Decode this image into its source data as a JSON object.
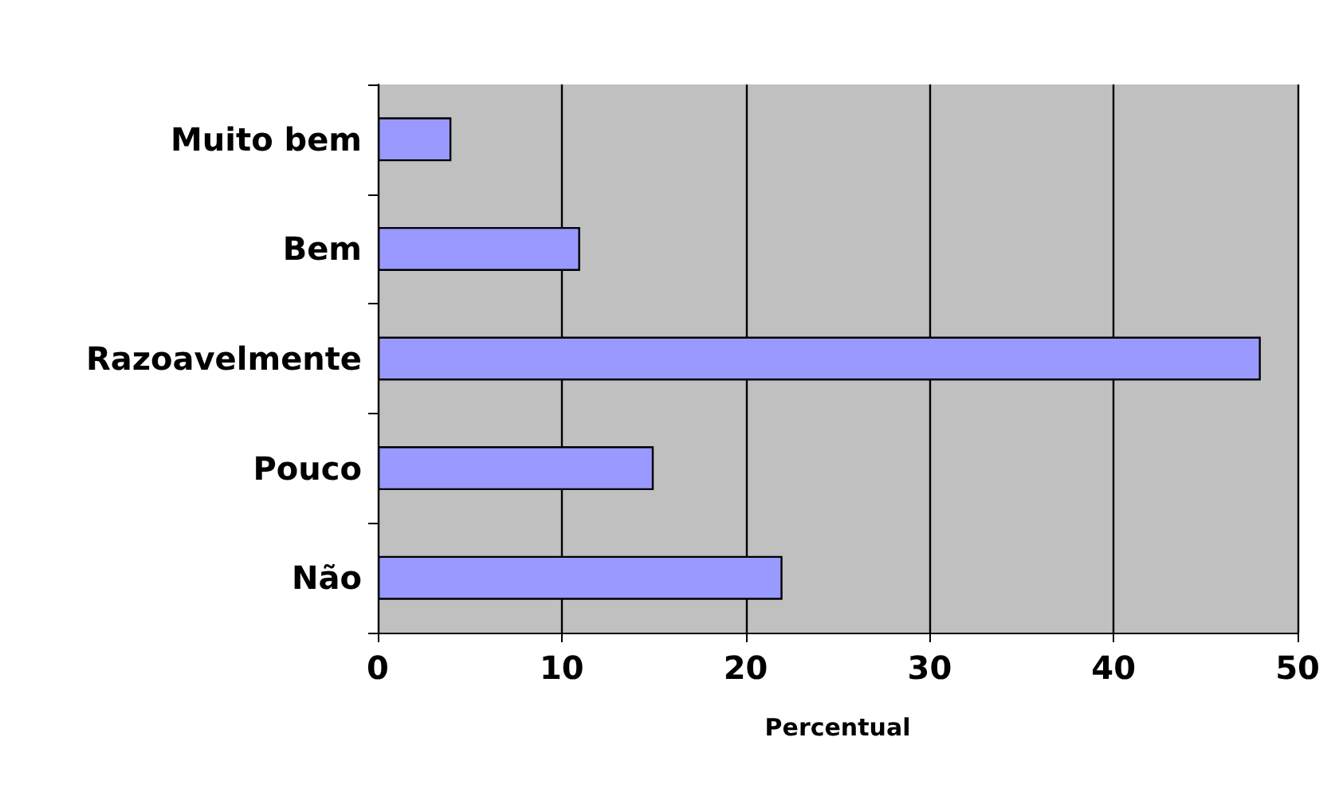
{
  "chart_data": {
    "type": "bar",
    "orientation": "horizontal",
    "xlabel": "Percentual",
    "categories": [
      "Muito bem",
      "Bem",
      "Razoavelmente",
      "Pouco",
      "Não"
    ],
    "series": [
      {
        "color": "#9999ff",
        "values": [
          4,
          11,
          48,
          15,
          22
        ]
      }
    ],
    "xlim": [
      0,
      50
    ],
    "xticks": [
      0,
      10,
      20,
      30,
      40,
      50
    ],
    "grid": "x"
  }
}
